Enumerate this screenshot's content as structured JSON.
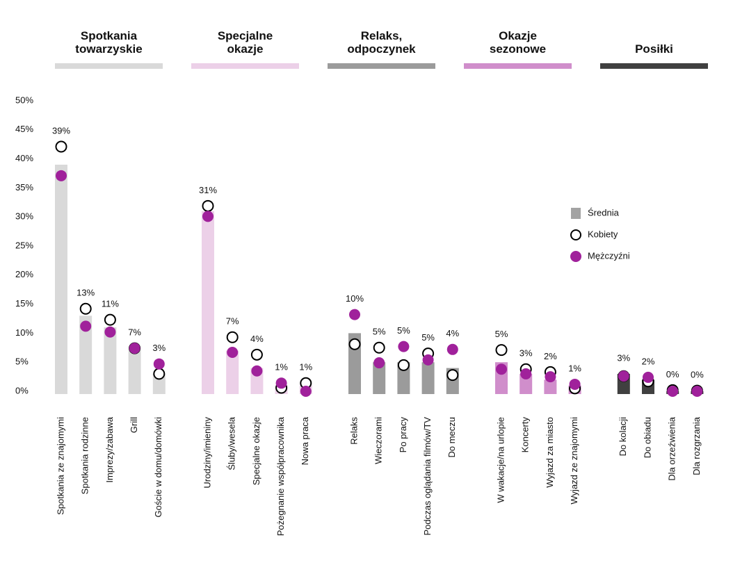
{
  "chart_data": {
    "type": "bar",
    "ylim": [
      0,
      50
    ],
    "yticks": [
      {
        "value": 0,
        "label": "0%"
      },
      {
        "value": 5,
        "label": "5%"
      },
      {
        "value": 10,
        "label": "10%"
      },
      {
        "value": 15,
        "label": "15%"
      },
      {
        "value": 20,
        "label": "20%"
      },
      {
        "value": 25,
        "label": "25%"
      },
      {
        "value": 30,
        "label": "30%"
      },
      {
        "value": 35,
        "label": "35%"
      },
      {
        "value": 40,
        "label": "40%"
      },
      {
        "value": 45,
        "label": "45%"
      },
      {
        "value": 50,
        "label": "50%"
      }
    ],
    "legend": "right",
    "groups": [
      {
        "name": "Spotkania towarzyskie",
        "color": "#d9d9d9",
        "categories": [
          "Spotkania ze znajomymi",
          "Spotkania rodzinne",
          "Imprezy/zabawa",
          "Grill",
          "Goście w domu/domówki"
        ]
      },
      {
        "name": "Specjalne okazje",
        "color": "#ecd0e8",
        "categories": [
          "Urodziny/imieniny",
          "Śluby/wesela",
          "Specjalne okazje",
          "Pożegnanie współpracownika",
          "Nowa praca"
        ]
      },
      {
        "name": "Relaks, odpoczynek",
        "color": "#9b9b9b",
        "categories": [
          "Relaks",
          "Wieczorami",
          "Po pracy",
          "Podczas oglądania filmów/TV",
          "Do meczu"
        ]
      },
      {
        "name": "Okazje sezonowe",
        "color": "#d08ecb",
        "categories": [
          "W wakacje/na urlopie",
          "Koncerty",
          "Wyjazd za miasto",
          "Wyjazd ze znajomymi"
        ]
      },
      {
        "name": "Posiłki",
        "color": "#404040",
        "categories": [
          "Do kolacji",
          "Do obiadu",
          "Dla orzeźwienia",
          "Dla rozgrzania"
        ]
      }
    ],
    "series": [
      {
        "name": "Średnia",
        "color": "#a3a3a3",
        "marker": "bar",
        "values": [
          39,
          13,
          11,
          7,
          3,
          31,
          7,
          4,
          1,
          1,
          10,
          5,
          5,
          5,
          4,
          5,
          3,
          2,
          1,
          3,
          2,
          0,
          0
        ],
        "value_labels": [
          "39%",
          "13%",
          "11%",
          "7%",
          "3%",
          "31%",
          "7%",
          "4%",
          "1%",
          "1%",
          "10%",
          "5%",
          "5%",
          "5%",
          "4%",
          "5%",
          "3%",
          "2%",
          "1%",
          "3%",
          "2%",
          "0%",
          "0%"
        ]
      },
      {
        "name": "Kobiety",
        "color": "#ffffff",
        "marker": "open-circle",
        "values": [
          42.1,
          14.2,
          12.3,
          7.4,
          3.0,
          31.9,
          9.3,
          6.3,
          0.6,
          1.4,
          8.1,
          7.5,
          4.5,
          6.5,
          2.8,
          7.1,
          3.8,
          3.3,
          0.5,
          2.6,
          1.7,
          0.2,
          0.1
        ]
      },
      {
        "name": "Mężczyźni",
        "color": "#a0219b",
        "marker": "circle",
        "values": [
          37.1,
          11.2,
          10.2,
          7.4,
          4.7,
          30.1,
          6.7,
          3.5,
          1.4,
          0,
          13.2,
          4.9,
          7.7,
          5.4,
          7.2,
          3.8,
          3.0,
          2.5,
          1.2,
          2.6,
          2.4,
          0,
          0
        ]
      }
    ]
  }
}
